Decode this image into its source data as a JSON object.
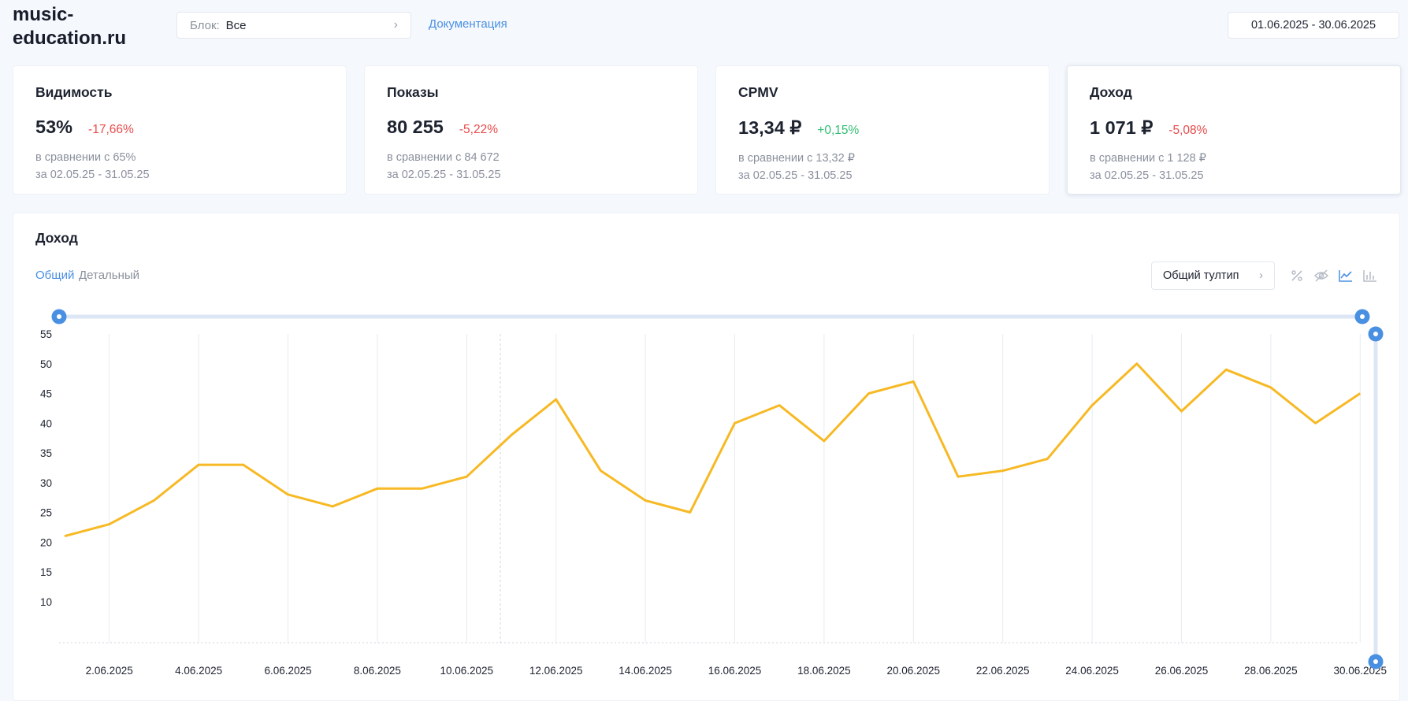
{
  "header": {
    "site": "music-\neducation.ru",
    "block_label": "Блок:",
    "block_value": "Все",
    "doc_link": "Документация",
    "date_range": "01.06.2025 - 30.06.2025"
  },
  "cards": [
    {
      "title": "Видимость",
      "value": "53%",
      "change": "-17,66%",
      "change_dir": "neg",
      "compare": "в сравнении с 65%",
      "period": "за 02.05.25 - 31.05.25"
    },
    {
      "title": "Показы",
      "value": "80 255",
      "change": "-5,22%",
      "change_dir": "neg",
      "compare": "в сравнении с 84 672",
      "period": "за 02.05.25 - 31.05.25"
    },
    {
      "title": "CPMV",
      "value": "13,34 ₽",
      "change": "+0,15%",
      "change_dir": "pos",
      "compare": "в сравнении с 13,32 ₽",
      "period": "за 02.05.25 - 31.05.25"
    },
    {
      "title": "Доход",
      "value": "1 071 ₽",
      "change": "-5,08%",
      "change_dir": "neg",
      "compare": "в сравнении с 1 128 ₽",
      "period": "за 02.05.25 - 31.05.25"
    }
  ],
  "panel": {
    "title": "Доход",
    "tab_general": "Общий",
    "tab_detailed": "Детальный",
    "tooltip_select": "Общий тултип",
    "icons": [
      "percent-icon",
      "hide-icon",
      "line-chart-icon",
      "bar-chart-icon"
    ]
  },
  "colors": {
    "accent": "#4a90e2",
    "line": "#f7b924",
    "negative": "#e84a4a",
    "positive": "#2fbf71"
  },
  "chart_data": {
    "type": "line",
    "title": "",
    "xlabel": "",
    "ylabel": "",
    "x": [
      "1.06.2025",
      "2.06.2025",
      "3.06.2025",
      "4.06.2025",
      "5.06.2025",
      "6.06.2025",
      "7.06.2025",
      "8.06.2025",
      "9.06.2025",
      "10.06.2025",
      "11.06.2025",
      "12.06.2025",
      "13.06.2025",
      "14.06.2025",
      "15.06.2025",
      "16.06.2025",
      "17.06.2025",
      "18.06.2025",
      "19.06.2025",
      "20.06.2025",
      "21.06.2025",
      "22.06.2025",
      "23.06.2025",
      "24.06.2025",
      "25.06.2025",
      "26.06.2025",
      "27.06.2025",
      "28.06.2025",
      "29.06.2025",
      "30.06.2025"
    ],
    "x_tick_labels": [
      "2.06.2025",
      "4.06.2025",
      "6.06.2025",
      "8.06.2025",
      "10.06.2025",
      "12.06.2025",
      "14.06.2025",
      "16.06.2025",
      "18.06.2025",
      "20.06.2025",
      "22.06.2025",
      "24.06.2025",
      "26.06.2025",
      "28.06.2025",
      "30.06.2025"
    ],
    "series": [
      {
        "values": [
          21,
          23,
          27,
          33,
          33,
          28,
          26,
          29,
          29,
          31,
          38,
          44,
          32,
          27,
          25,
          40,
          43,
          37,
          45,
          47,
          31,
          32,
          34,
          43,
          50,
          42,
          49,
          46,
          40,
          45
        ]
      }
    ],
    "y_ticks": [
      10,
      15,
      20,
      25,
      30,
      35,
      40,
      45,
      50,
      55
    ],
    "ylim": [
      0,
      55
    ],
    "grid": true,
    "legend": "none"
  }
}
